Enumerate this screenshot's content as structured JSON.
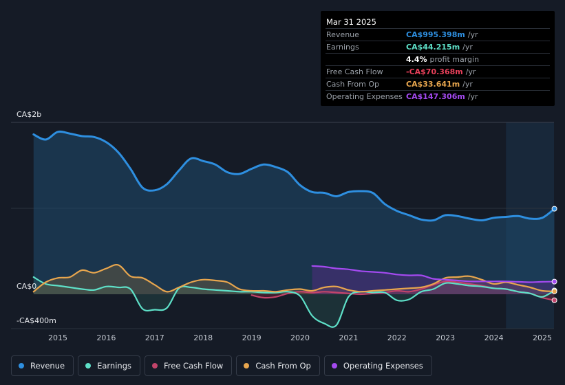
{
  "tooltip": {
    "date": "Mar 31 2025",
    "rows": [
      {
        "label": "Revenue",
        "value": "CA$995.398m",
        "unit": "/yr"
      },
      {
        "label": "Earnings",
        "value": "CA$44.215m",
        "unit": "/yr"
      },
      {
        "label": "",
        "value": "4.4%",
        "unit": "profit margin"
      },
      {
        "label": "Free Cash Flow",
        "value": "-CA$70.368m",
        "unit": "/yr"
      },
      {
        "label": "Cash From Op",
        "value": "CA$33.641m",
        "unit": "/yr"
      },
      {
        "label": "Operating Expenses",
        "value": "CA$147.306m",
        "unit": "/yr"
      }
    ]
  },
  "legend": {
    "revenue": "Revenue",
    "earnings": "Earnings",
    "fcf": "Free Cash Flow",
    "cfo": "Cash From Op",
    "opex": "Operating Expenses"
  },
  "colors": {
    "revenue": "#2e8fe0",
    "earnings": "#5ee0c8",
    "fcf": "#c2446a",
    "cfo": "#e8a64e",
    "opex": "#a44af0"
  },
  "chart_data": {
    "type": "line",
    "title": "",
    "xlabel": "",
    "ylabel": "",
    "xlim": [
      2014.5,
      2025.25
    ],
    "ylim": [
      -400,
      2000
    ],
    "y_tick_labels": [
      {
        "value": 2000,
        "label": "CA$2b"
      },
      {
        "value": 0,
        "label": "CA$0"
      },
      {
        "value": -400,
        "label": "-CA$400m"
      }
    ],
    "x_ticks": [
      2015,
      2016,
      2017,
      2018,
      2019,
      2020,
      2021,
      2022,
      2023,
      2024,
      2025
    ],
    "x_tick_labels": [
      "2015",
      "2016",
      "2017",
      "2018",
      "2019",
      "2020",
      "2021",
      "2022",
      "2023",
      "2024",
      "2025"
    ],
    "forecast_start": 2024.25,
    "series": [
      {
        "key": "revenue",
        "name": "Revenue",
        "x": [
          2014.5,
          2014.75,
          2015.0,
          2015.25,
          2015.5,
          2015.75,
          2016.0,
          2016.25,
          2016.5,
          2016.75,
          2017.0,
          2017.25,
          2017.5,
          2017.75,
          2018.0,
          2018.25,
          2018.5,
          2018.75,
          2019.0,
          2019.25,
          2019.5,
          2019.75,
          2020.0,
          2020.25,
          2020.5,
          2020.75,
          2021.0,
          2021.25,
          2021.5,
          2021.75,
          2022.0,
          2022.25,
          2022.5,
          2022.75,
          2023.0,
          2023.25,
          2023.5,
          2023.75,
          2024.0,
          2024.25,
          2024.5,
          2024.75,
          2025.0,
          2025.25
        ],
        "values": [
          1860,
          1800,
          1890,
          1870,
          1840,
          1830,
          1770,
          1650,
          1460,
          1240,
          1210,
          1280,
          1440,
          1580,
          1550,
          1510,
          1420,
          1400,
          1460,
          1510,
          1480,
          1420,
          1270,
          1190,
          1180,
          1140,
          1190,
          1200,
          1180,
          1050,
          970,
          920,
          870,
          860,
          920,
          910,
          880,
          860,
          890,
          900,
          910,
          880,
          890,
          995
        ]
      },
      {
        "key": "earnings",
        "name": "Earnings",
        "x": [
          2014.5,
          2014.75,
          2015.0,
          2015.25,
          2015.5,
          2015.75,
          2016.0,
          2016.25,
          2016.5,
          2016.75,
          2017.0,
          2017.25,
          2017.5,
          2017.75,
          2018.0,
          2018.25,
          2018.5,
          2018.75,
          2019.0,
          2019.25,
          2019.5,
          2019.75,
          2020.0,
          2020.25,
          2020.5,
          2020.75,
          2021.0,
          2021.25,
          2021.5,
          2021.75,
          2022.0,
          2022.25,
          2022.5,
          2022.75,
          2023.0,
          2023.25,
          2023.5,
          2023.75,
          2024.0,
          2024.25,
          2024.5,
          2024.75,
          2025.0,
          2025.25
        ],
        "values": [
          200,
          120,
          100,
          80,
          60,
          50,
          90,
          80,
          60,
          -170,
          -180,
          -160,
          70,
          80,
          60,
          50,
          40,
          30,
          30,
          20,
          20,
          30,
          -20,
          -250,
          -340,
          -360,
          -30,
          30,
          20,
          20,
          -70,
          -60,
          30,
          60,
          130,
          120,
          100,
          90,
          70,
          60,
          30,
          10,
          -30,
          44
        ]
      },
      {
        "key": "fcf",
        "name": "Free Cash Flow",
        "x": [
          2019.0,
          2019.25,
          2019.5,
          2019.75,
          2020.0,
          2020.25,
          2020.5,
          2020.75,
          2021.0,
          2021.25,
          2021.5,
          2021.75,
          2022.0,
          2022.25,
          2022.5,
          2022.75,
          2023.0,
          2023.25,
          2023.5,
          2023.75,
          2024.0,
          2024.25,
          2024.5,
          2024.75,
          2025.0,
          2025.25
        ],
        "values": [
          -10,
          -40,
          -30,
          10,
          30,
          20,
          30,
          20,
          10,
          0,
          10,
          20,
          40,
          30,
          60,
          110,
          150,
          140,
          120,
          100,
          70,
          60,
          30,
          10,
          -40,
          -70
        ]
      },
      {
        "key": "cfo",
        "name": "Cash From Op",
        "x": [
          2014.5,
          2014.75,
          2015.0,
          2015.25,
          2015.5,
          2015.75,
          2016.0,
          2016.25,
          2016.5,
          2016.75,
          2017.0,
          2017.25,
          2017.5,
          2017.75,
          2018.0,
          2018.25,
          2018.5,
          2018.75,
          2019.0,
          2019.25,
          2019.5,
          2019.75,
          2020.0,
          2020.25,
          2020.5,
          2020.75,
          2021.0,
          2021.25,
          2021.5,
          2021.75,
          2022.0,
          2022.25,
          2022.5,
          2022.75,
          2023.0,
          2023.25,
          2023.5,
          2023.75,
          2024.0,
          2024.25,
          2024.5,
          2024.75,
          2025.0,
          2025.25
        ],
        "values": [
          30,
          140,
          190,
          200,
          280,
          250,
          300,
          340,
          210,
          190,
          110,
          30,
          80,
          140,
          170,
          160,
          140,
          60,
          40,
          40,
          30,
          50,
          60,
          40,
          80,
          90,
          50,
          30,
          40,
          50,
          60,
          70,
          80,
          120,
          190,
          200,
          210,
          170,
          120,
          140,
          110,
          80,
          40,
          34
        ]
      },
      {
        "key": "opex",
        "name": "Operating Expenses",
        "x": [
          2020.25,
          2020.5,
          2020.75,
          2021.0,
          2021.25,
          2021.5,
          2021.75,
          2022.0,
          2022.25,
          2022.5,
          2022.75,
          2023.0,
          2023.25,
          2023.5,
          2023.75,
          2024.0,
          2024.25,
          2024.5,
          2024.75,
          2025.0,
          2025.25
        ],
        "values": [
          330,
          320,
          300,
          290,
          270,
          260,
          250,
          230,
          220,
          220,
          180,
          170,
          160,
          150,
          150,
          150,
          150,
          145,
          140,
          145,
          147
        ]
      }
    ]
  }
}
